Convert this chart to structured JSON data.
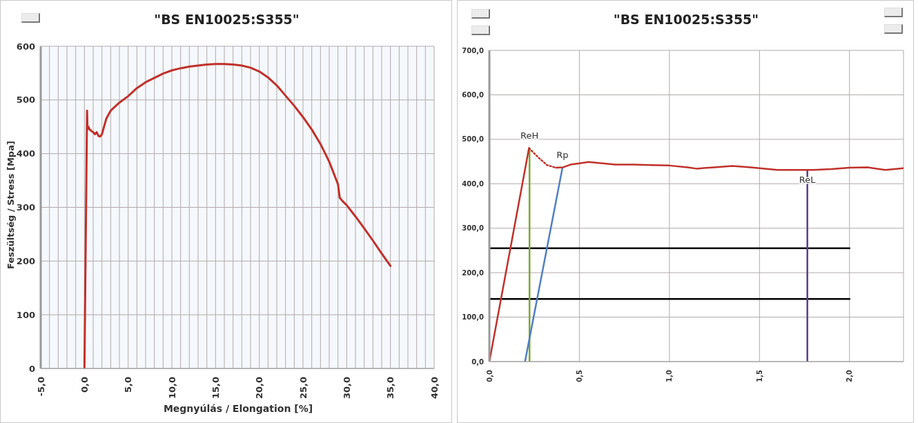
{
  "chart_data": [
    {
      "type": "line",
      "title": "\"BS EN10025:S355\"",
      "xlabel": "Megnyúlás / Elongation [%]",
      "ylabel": "Feszültség / Stress [Mpa]",
      "xlim": [
        -5,
        40
      ],
      "ylim": [
        0,
        600
      ],
      "xticks": [
        {
          "value": -5,
          "label": "-5,0"
        },
        {
          "value": -4,
          "label": null
        },
        {
          "value": -3,
          "label": null
        },
        {
          "value": -2,
          "label": null
        },
        {
          "value": -1,
          "label": null
        },
        {
          "value": 0,
          "label": "0,0"
        },
        {
          "value": 1,
          "label": null
        },
        {
          "value": 2,
          "label": null
        },
        {
          "value": 3,
          "label": null
        },
        {
          "value": 4,
          "label": null
        },
        {
          "value": 5,
          "label": "5,0"
        },
        {
          "value": 6,
          "label": null
        },
        {
          "value": 7,
          "label": null
        },
        {
          "value": 8,
          "label": null
        },
        {
          "value": 9,
          "label": null
        },
        {
          "value": 10,
          "label": "10,0"
        },
        {
          "value": 11,
          "label": null
        },
        {
          "value": 12,
          "label": null
        },
        {
          "value": 13,
          "label": null
        },
        {
          "value": 14,
          "label": null
        },
        {
          "value": 15,
          "label": "15,0"
        },
        {
          "value": 16,
          "label": null
        },
        {
          "value": 17,
          "label": null
        },
        {
          "value": 18,
          "label": null
        },
        {
          "value": 19,
          "label": null
        },
        {
          "value": 20,
          "label": "20,0"
        },
        {
          "value": 21,
          "label": null
        },
        {
          "value": 22,
          "label": null
        },
        {
          "value": 23,
          "label": null
        },
        {
          "value": 24,
          "label": null
        },
        {
          "value": 25,
          "label": "25,0"
        },
        {
          "value": 26,
          "label": null
        },
        {
          "value": 27,
          "label": null
        },
        {
          "value": 28,
          "label": null
        },
        {
          "value": 29,
          "label": null
        },
        {
          "value": 30,
          "label": "30,0"
        },
        {
          "value": 31,
          "label": null
        },
        {
          "value": 32,
          "label": null
        },
        {
          "value": 33,
          "label": null
        },
        {
          "value": 34,
          "label": null
        },
        {
          "value": 35,
          "label": "35,0"
        },
        {
          "value": 36,
          "label": null
        },
        {
          "value": 37,
          "label": null
        },
        {
          "value": 38,
          "label": null
        },
        {
          "value": 39,
          "label": null
        },
        {
          "value": 40,
          "label": "40,0"
        }
      ],
      "yticks": [
        0,
        100,
        200,
        300,
        400,
        500,
        600
      ],
      "grid": true,
      "marker": "none",
      "series": [
        {
          "color": "#c0302a",
          "x": [
            0,
            0.15,
            0.3,
            0.35,
            0.45,
            0.6,
            0.8,
            1.0,
            1.2,
            1.4,
            1.6,
            1.8,
            2.0,
            2.2,
            2.5,
            3,
            4,
            5,
            6,
            7,
            8,
            9,
            10,
            11,
            12,
            13,
            14,
            15,
            16,
            17,
            18,
            19,
            20,
            21,
            22,
            23,
            24,
            25,
            26,
            27,
            28,
            29,
            29.2,
            29.5,
            30,
            31,
            32,
            33,
            34,
            35
          ],
          "values": [
            0,
            240,
            480,
            445,
            450,
            445,
            442,
            440,
            436,
            440,
            433,
            432,
            436,
            448,
            465,
            480,
            495,
            507,
            522,
            533,
            541,
            549,
            555,
            559,
            562,
            564,
            566,
            567,
            567,
            566,
            564,
            560,
            553,
            542,
            527,
            508,
            489,
            468,
            445,
            418,
            385,
            343,
            318,
            312,
            304,
            283,
            261,
            238,
            214,
            191
          ]
        }
      ]
    },
    {
      "type": "line",
      "title": "\"BS EN10025:S355\"",
      "xlim": [
        0,
        2.3
      ],
      "ylim": [
        0,
        700
      ],
      "xticks": [
        {
          "value": 0,
          "label": "0,0"
        },
        {
          "value": 0.5,
          "label": "0,5"
        },
        {
          "value": 1,
          "label": "1,0"
        },
        {
          "value": 1.5,
          "label": "1,5"
        },
        {
          "value": 2,
          "label": "2,0"
        }
      ],
      "yticks": [
        {
          "value": 0,
          "label": "0,0"
        },
        {
          "value": 100,
          "label": "100,0"
        },
        {
          "value": 200,
          "label": "200,0"
        },
        {
          "value": 300,
          "label": "300,0"
        },
        {
          "value": 400,
          "label": "400,0"
        },
        {
          "value": 500,
          "label": "500,0"
        },
        {
          "value": 600,
          "label": "600,0"
        },
        {
          "value": 700,
          "label": "700,0"
        }
      ],
      "grid": true,
      "marker": "none",
      "annotations": [
        {
          "text": "ReH",
          "x": 0.223,
          "y": 480
        },
        {
          "text": "Rp",
          "x": 0.406,
          "y": 436
        },
        {
          "text": "ReL",
          "x": 1.766,
          "y": 380
        }
      ],
      "series": [
        {
          "color": "#000000",
          "x": [
            0,
            2.0
          ],
          "values": [
            255,
            255
          ]
        },
        {
          "color": "#000000",
          "x": [
            0,
            2.0
          ],
          "values": [
            141,
            141
          ]
        },
        {
          "color": "#7aa631",
          "x": [
            0.223,
            0.223
          ],
          "values": [
            0,
            480
          ]
        },
        {
          "color": "#4f7fc0",
          "x": [
            0.198,
            0.406
          ],
          "values": [
            0,
            436
          ]
        },
        {
          "color": "#5b3d8f",
          "x": [
            1.766,
            1.766
          ],
          "values": [
            0,
            431
          ]
        },
        {
          "color": "#c0302a",
          "x": [
            0,
            0.22
          ],
          "values": [
            0,
            480
          ]
        },
        {
          "color": "#c0302a",
          "line_style": "dotted",
          "x": [
            0.22,
            0.27,
            0.32,
            0.37
          ],
          "values": [
            480,
            460,
            442,
            436
          ]
        },
        {
          "color": "#c0302a",
          "x": [
            0.37,
            0.41,
            0.45,
            0.5,
            0.55,
            0.6,
            0.7,
            0.8,
            0.9,
            1.0,
            1.1,
            1.15,
            1.25,
            1.35,
            1.45,
            1.5,
            1.6,
            1.7,
            1.8,
            1.9,
            2.0,
            2.1,
            2.2,
            2.3
          ],
          "values": [
            436,
            437,
            443,
            446,
            449,
            447,
            443,
            443,
            442,
            441,
            437,
            434,
            437,
            440,
            437,
            435,
            431,
            431,
            431,
            433,
            436,
            437,
            431,
            435
          ]
        }
      ]
    }
  ]
}
